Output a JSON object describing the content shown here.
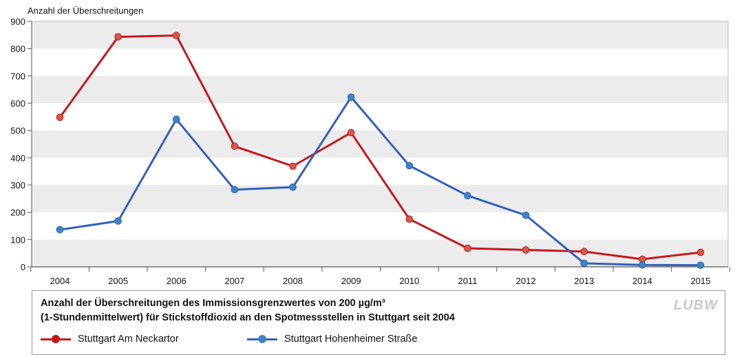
{
  "chart_data": {
    "type": "line",
    "ylabel": "Anzahl der Überschreitungen",
    "categories": [
      "2004",
      "2005",
      "2006",
      "2007",
      "2008",
      "2009",
      "2010",
      "2011",
      "2012",
      "2013",
      "2014",
      "2015"
    ],
    "ylim": [
      0,
      900
    ],
    "yticks": [
      0,
      100,
      200,
      300,
      400,
      500,
      600,
      700,
      800,
      900
    ],
    "grid": "alternating horizontal bands",
    "series": [
      {
        "name": "Stuttgart Am Neckartor",
        "color": "#c4181b",
        "marker_color": "#d45a4a",
        "values": [
          548,
          843,
          848,
          442,
          369,
          492,
          175,
          68,
          62,
          56,
          28,
          53
        ]
      },
      {
        "name": "Stuttgart Hohenheimer Straße",
        "color": "#2f5fbd",
        "marker_color": "#3d86c6",
        "values": [
          136,
          168,
          541,
          283,
          292,
          622,
          371,
          261,
          189,
          13,
          7,
          6
        ]
      }
    ],
    "caption_lines": [
      "Anzahl der Überschreitungen des Immissionsgrenzwertes von 200 µg/m³",
      "(1-Stundenmittelwert) für Stickstoffdioxid an den Spotmessstellen in Stuttgart seit 2004"
    ],
    "legend_position": "bottom"
  },
  "logo_text": "LUBW"
}
